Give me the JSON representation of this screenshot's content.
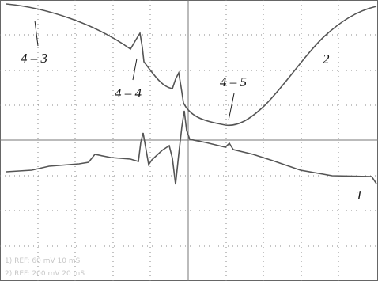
{
  "labels": {
    "marker_4_3": "4 – 3",
    "marker_4_4": "4 – 4",
    "marker_4_5": "4 – 5",
    "trace_2": "2",
    "trace_1": "1"
  },
  "status": {
    "line_1": "1) REF: 60 mV  10 mS",
    "line_2": "2) REF: 200 mV  20 mS"
  }
}
